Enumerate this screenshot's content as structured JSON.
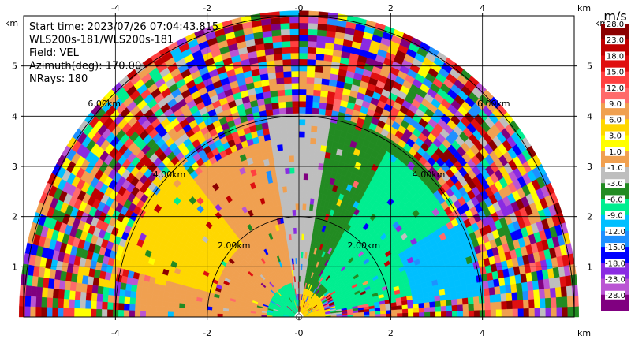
{
  "info": {
    "start_time": "Start time: 2023/07/26 07:04:43.815",
    "instrument": "WLS200s-181/WLS200s-181",
    "field": "Field: VEL",
    "azimuth": "Azimuth(deg): 170.00",
    "nrays": "NRays: 180"
  },
  "colorbar": {
    "unit": "m/s",
    "labels": [
      "28.0",
      "23.0",
      "18.0",
      "15.0",
      "12.0",
      "9.0",
      "6.0",
      "3.0",
      "1.0",
      "-1.0",
      "-3.0",
      "-6.0",
      "-9.0",
      "-12.0",
      "-15.0",
      "-18.0",
      "-23.0",
      "-28.0"
    ],
    "colors": [
      "#8b0000",
      "#c00000",
      "#e01010",
      "#ff4040",
      "#ff6a6a",
      "#f0a050",
      "#ffd700",
      "#ffff00",
      "#f0a050",
      "#bebebe",
      "#228b22",
      "#00ee90",
      "#00bfff",
      "#1e90ff",
      "#0000ff",
      "#8a2be2",
      "#ba55d3",
      "#800080"
    ]
  },
  "chart_data": {
    "type": "heatmap",
    "title": "",
    "xlabel": "km",
    "ylabel": "km",
    "xlim": [
      -6,
      6
    ],
    "ylim": [
      0,
      6
    ],
    "x_ticks": [
      -4,
      -2,
      0,
      2,
      4
    ],
    "y_ticks": [
      1,
      2,
      3,
      4,
      5
    ],
    "x_tick_labels": [
      "-4",
      "-2",
      "-0",
      "2",
      "4"
    ],
    "y_tick_labels": [
      "1",
      "2",
      "3",
      "4",
      "5"
    ],
    "x_unit": "km",
    "y_unit": "km",
    "range_rings": [
      {
        "range_km": 2,
        "label": "2.00km"
      },
      {
        "range_km": 4,
        "label": "4.00km"
      },
      {
        "range_km": 6,
        "label": "6.00km"
      }
    ],
    "max_range_km": 6,
    "regions": [
      {
        "name": "near-left-band",
        "value": -6.0,
        "az_range": [
          100,
          180
        ],
        "r_range": [
          0.1,
          0.6
        ]
      },
      {
        "name": "near-right-band",
        "value": 6.0,
        "az_range": [
          0,
          80
        ],
        "r_range": [
          0.1,
          0.5
        ]
      },
      {
        "name": "left-mid",
        "value": 1.0,
        "az_range": [
          95,
          180
        ],
        "r_range": [
          0.6,
          3.5
        ]
      },
      {
        "name": "left-yellow",
        "value": 6.0,
        "az_range": [
          130,
          165
        ],
        "r_range": [
          1.8,
          4.0
        ]
      },
      {
        "name": "center-grey",
        "value": -1.0,
        "az_range": [
          80,
          100
        ],
        "r_range": [
          0.4,
          4.0
        ]
      },
      {
        "name": "right-green",
        "value": -3.0,
        "az_range": [
          40,
          80
        ],
        "r_range": [
          0.5,
          4.0
        ]
      },
      {
        "name": "right-mint",
        "value": -6.0,
        "az_range": [
          10,
          60
        ],
        "r_range": [
          0.8,
          3.8
        ]
      },
      {
        "name": "right-cyan",
        "value": -9.0,
        "az_range": [
          5,
          30
        ],
        "r_range": [
          2.5,
          4.5
        ]
      },
      {
        "name": "outer-noise",
        "value": null,
        "az_range": [
          0,
          180
        ],
        "r_range": [
          4.0,
          6.0
        ]
      }
    ]
  }
}
